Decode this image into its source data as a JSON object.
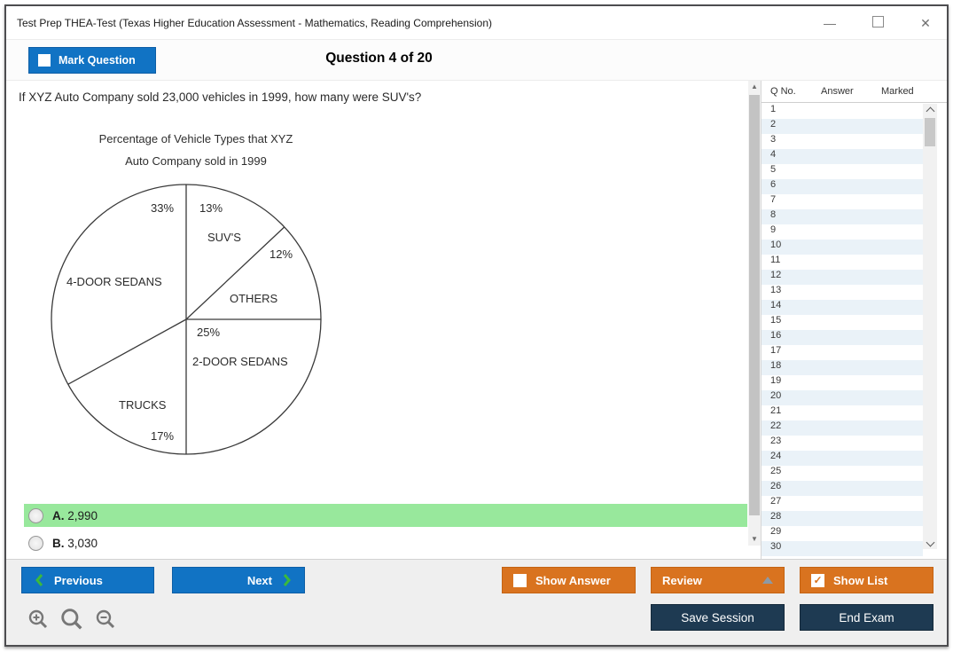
{
  "window": {
    "title": "Test Prep THEA-Test (Texas Higher Education Assessment - Mathematics, Reading Comprehension)",
    "controls": {
      "minimize": "—",
      "close": "✕"
    }
  },
  "header": {
    "mark_question_label": "Mark Question",
    "question_counter": "Question 4 of 20"
  },
  "question": {
    "text": "If XYZ Auto Company sold 23,000 vehicles in 1999, how many were SUV's?"
  },
  "chart_data": {
    "type": "pie",
    "title_line1": "Percentage of Vehicle Types that XYZ",
    "title_line2": "Auto Company sold in 1999",
    "start_angle_deg": 0,
    "direction": "clockwise",
    "style": "outline-only, black stroke on white, labels inside slices",
    "segments": [
      {
        "label": "SUV'S",
        "value": 13,
        "pct": "13%"
      },
      {
        "label": "OTHERS",
        "value": 12,
        "pct": "12%"
      },
      {
        "label": "2-DOOR SEDANS",
        "value": 25,
        "pct": "25%"
      },
      {
        "label": "TRUCKS",
        "value": 17,
        "pct": "17%"
      },
      {
        "label": "4-DOOR SEDANS",
        "value": 33,
        "pct": "33%"
      }
    ]
  },
  "options": [
    {
      "letter": "A.",
      "value": "2,990",
      "highlighted": true
    },
    {
      "letter": "B.",
      "value": "3,030",
      "highlighted": false
    }
  ],
  "question_list": {
    "columns": [
      "Q No.",
      "Answer",
      "Marked"
    ],
    "rows": [
      1,
      2,
      3,
      4,
      5,
      6,
      7,
      8,
      9,
      10,
      11,
      12,
      13,
      14,
      15,
      16,
      17,
      18,
      19,
      20,
      21,
      22,
      23,
      24,
      25,
      26,
      27,
      28,
      29,
      30
    ]
  },
  "footer": {
    "previous": "Previous",
    "next": "Next",
    "show_answer": "Show Answer",
    "review": "Review",
    "show_list": "Show List",
    "save_session": "Save Session",
    "end_exam": "End Exam"
  },
  "colors": {
    "accent_blue": "#1173c4",
    "accent_orange": "#d9731f",
    "navy": "#1e3a52",
    "highlight_green": "#98e89c",
    "row_alternate": "#eaf2f8",
    "chevron_green": "#3cb93c"
  }
}
